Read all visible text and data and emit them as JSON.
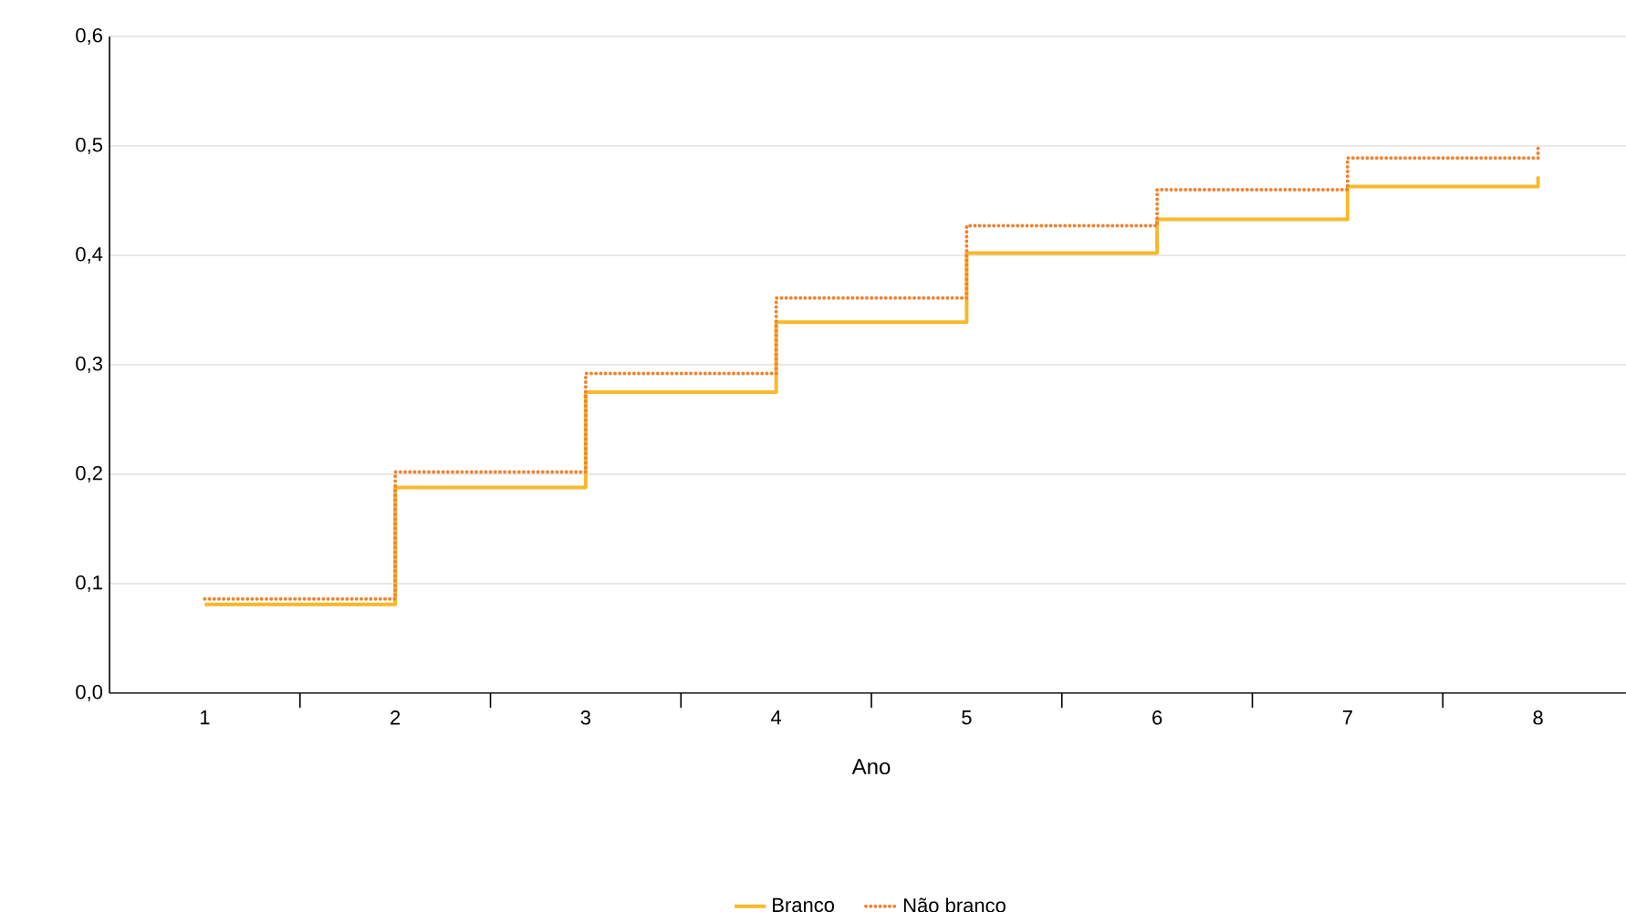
{
  "chart_data": {
    "type": "step",
    "xlabel": "Ano",
    "x": [
      1,
      2,
      3,
      4,
      5,
      6,
      7,
      8
    ],
    "series": [
      {
        "name": "Branco",
        "color": "#f8b92b",
        "line_style": "solid",
        "values": [
          0.081,
          0.188,
          0.275,
          0.339,
          0.402,
          0.433,
          0.463,
          0.472
        ]
      },
      {
        "name": "Não branco",
        "color": "#f0832f",
        "line_style": "dotted",
        "values": [
          0.086,
          0.202,
          0.292,
          0.361,
          0.427,
          0.46,
          0.489,
          0.5
        ]
      }
    ],
    "xlim": [
      0.5,
      8.5
    ],
    "xticks": [
      1,
      2,
      3,
      4,
      5,
      6,
      7,
      8
    ],
    "ylim": [
      0,
      0.6
    ],
    "yticks": [
      {
        "value": 0,
        "label": "0,0"
      },
      {
        "value": 0.1,
        "label": "0,1"
      },
      {
        "value": 0.2,
        "label": "0,2"
      },
      {
        "value": 0.3,
        "label": "0,3"
      },
      {
        "value": 0.4,
        "label": "0,4"
      },
      {
        "value": 0.5,
        "label": "0,5"
      },
      {
        "value": 0.6,
        "label": "0,6"
      }
    ],
    "grid": "y",
    "legend": "bottom",
    "marker": "none"
  }
}
